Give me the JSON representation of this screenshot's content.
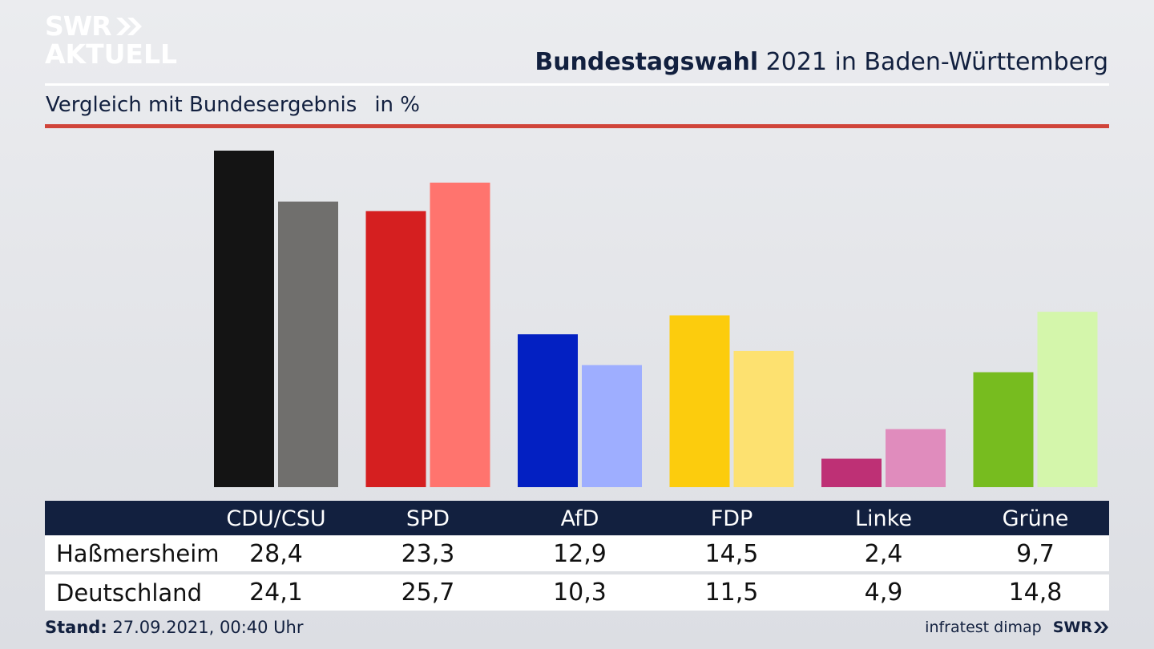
{
  "brand": {
    "logo_line1": "SWR",
    "logo_line2": "AKTUELL",
    "footer_logo": "SWR"
  },
  "header": {
    "title_bold": "Bundestagswahl",
    "title_rest": " 2021 in Baden-Württemberg",
    "subtitle": "Vergleich mit Bundesergebnis",
    "unit": "in %"
  },
  "chart_data": {
    "type": "bar",
    "categories": [
      "CDU/CSU",
      "SPD",
      "AfD",
      "FDP",
      "Linke",
      "Grüne"
    ],
    "series": [
      {
        "name": "Haßmersheim",
        "values": [
          28.4,
          23.3,
          12.9,
          14.5,
          2.4,
          9.7
        ],
        "colors": [
          "#141414",
          "#d51f20",
          "#0320c2",
          "#fccc0d",
          "#be3075",
          "#77bc1f"
        ]
      },
      {
        "name": "Deutschland",
        "values": [
          24.1,
          25.7,
          10.3,
          11.5,
          4.9,
          14.8
        ],
        "colors": [
          "#706f6d",
          "#ff746e",
          "#9eaeff",
          "#fde170",
          "#e08cbd",
          "#d4f6ab"
        ]
      }
    ],
    "ylim": [
      0,
      28.4
    ]
  },
  "table": {
    "rows": [
      {
        "label": "Haßmersheim",
        "values": [
          "28,4",
          "23,3",
          "12,9",
          "14,5",
          "2,4",
          "9,7"
        ]
      },
      {
        "label": "Deutschland",
        "values": [
          "24,1",
          "25,7",
          "10,3",
          "11,5",
          "4,9",
          "14,8"
        ]
      }
    ]
  },
  "footer": {
    "stand_label": "Stand:",
    "stand_value": " 27.09.2021, 00:40 Uhr",
    "source": "infratest dimap"
  }
}
